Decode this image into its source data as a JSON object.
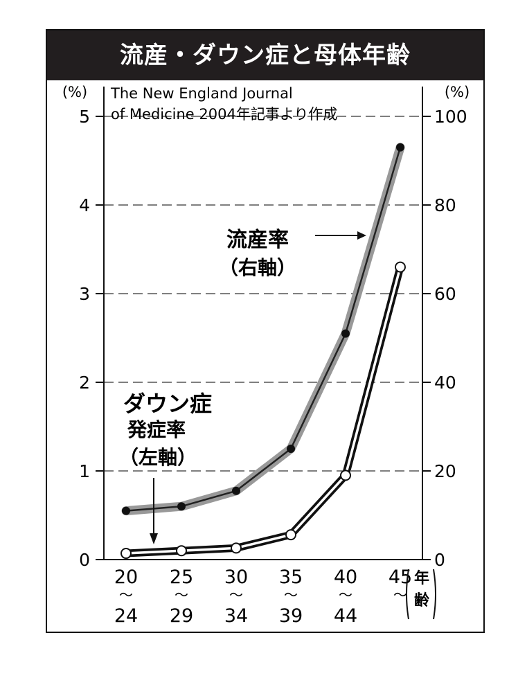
{
  "title": "流産・ダウン症と母体年齢",
  "source_line1": "The New England Journal",
  "source_line2": "of Medicine 2004年記事より作成",
  "left_unit": "(%)",
  "right_unit": "(%)",
  "x_unit": "年齢",
  "label_miscarriage": "流産率",
  "label_miscarriage_axis": "（右軸）",
  "label_down_1": "ダウン症",
  "label_down_2": "発症率",
  "label_down_axis": "（左軸）",
  "chart_data": {
    "type": "line",
    "title": "流産・ダウン症と母体年齢",
    "categories": [
      {
        "top": "20",
        "bottom": "24"
      },
      {
        "top": "25",
        "bottom": "29"
      },
      {
        "top": "30",
        "bottom": "34"
      },
      {
        "top": "35",
        "bottom": "39"
      },
      {
        "top": "40",
        "bottom": "44"
      },
      {
        "top": "45",
        "bottom": ""
      }
    ],
    "left_ticks": [
      "0",
      "1",
      "2",
      "3",
      "4",
      "5"
    ],
    "right_ticks": [
      "0",
      "20",
      "40",
      "60",
      "80",
      "100"
    ],
    "ylim_left": [
      0,
      5
    ],
    "ylim_right": [
      0,
      100
    ],
    "grid": "dashed horizontal",
    "series": [
      {
        "name": "流産率",
        "axis": "right",
        "color": "#888888",
        "values": [
          11,
          12,
          15.5,
          25,
          51,
          93
        ]
      },
      {
        "name": "ダウン症発症率",
        "axis": "left",
        "color": "#111111",
        "values": [
          0.07,
          0.1,
          0.13,
          0.28,
          0.95,
          3.3
        ]
      }
    ]
  }
}
